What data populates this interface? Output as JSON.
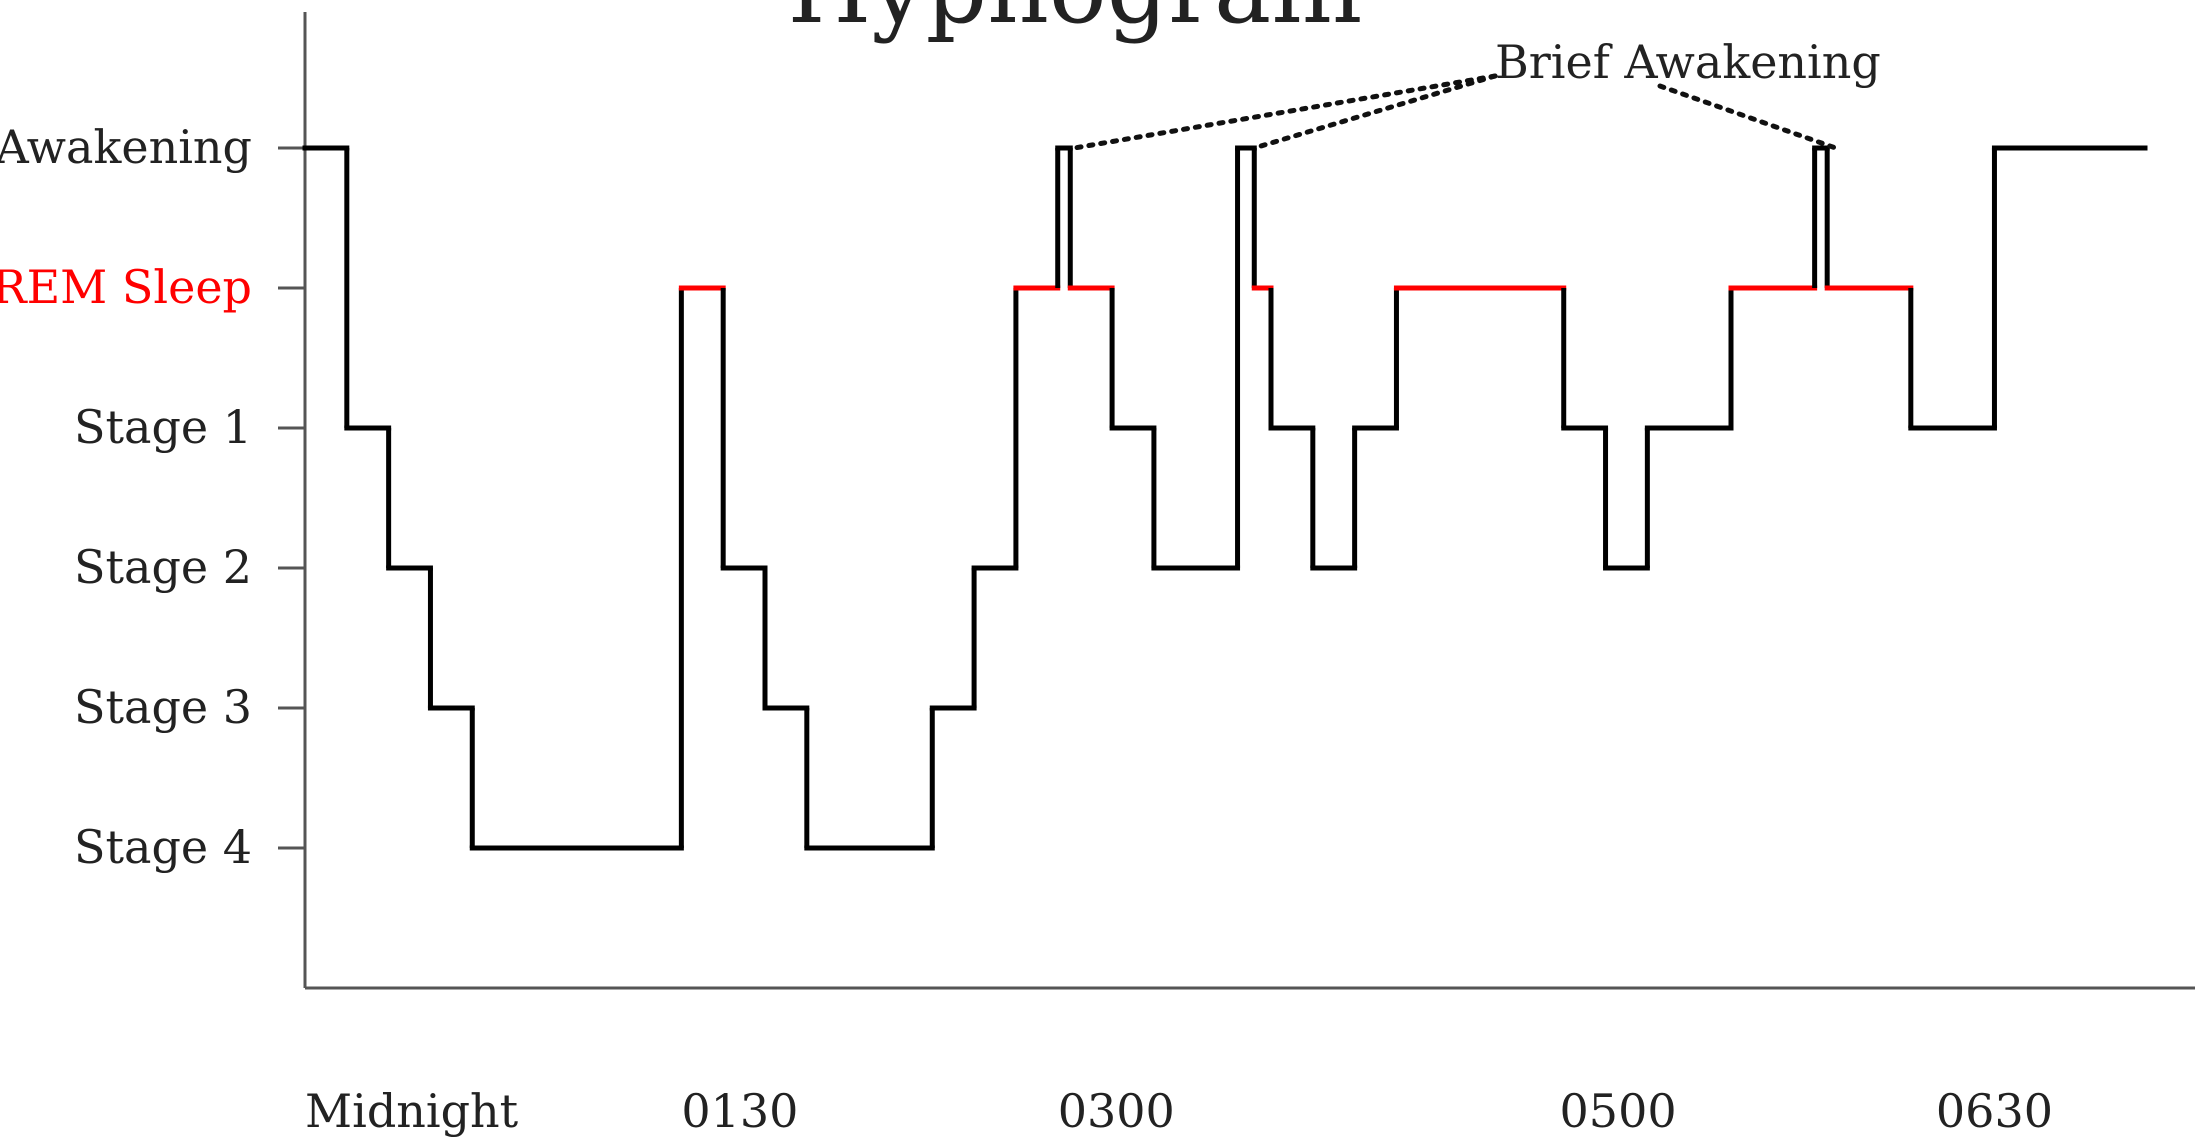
{
  "chart_data": {
    "type": "line",
    "title": "Hypnogram",
    "xlabel": "",
    "ylabel": "",
    "x_tick_labels": [
      "Midnight",
      "0130",
      "0300",
      "0500",
      "0630"
    ],
    "x_ticks_minutes_after_midnight": [
      0,
      90,
      180,
      300,
      390
    ],
    "y_categories": [
      "Awakening",
      "REM Sleep",
      "Stage 1",
      "Stage 2",
      "Stage 3",
      "Stage 4"
    ],
    "y_category_colors": [
      "#222222",
      "#ff0000",
      "#222222",
      "#222222",
      "#222222",
      "#222222"
    ],
    "x_unit": "minutes after midnight",
    "xlim": [
      0,
      440
    ],
    "ylim_levels": [
      -1,
      6
    ],
    "grid": false,
    "line_color": "#000000",
    "rem_color": "#ff0000",
    "annotation": {
      "text": "Brief Awakening",
      "targets_minutes": [
        184,
        227,
        366
      ]
    },
    "series": [
      {
        "segments": [
          {
            "start": 0,
            "end": 10,
            "stage": "Awakening"
          },
          {
            "start": 10,
            "end": 20,
            "stage": "Stage 1"
          },
          {
            "start": 20,
            "end": 30,
            "stage": "Stage 2"
          },
          {
            "start": 30,
            "end": 40,
            "stage": "Stage 3"
          },
          {
            "start": 40,
            "end": 90,
            "stage": "Stage 4"
          },
          {
            "start": 90,
            "end": 100,
            "stage": "REM Sleep"
          },
          {
            "start": 100,
            "end": 110,
            "stage": "Stage 2"
          },
          {
            "start": 110,
            "end": 120,
            "stage": "Stage 3"
          },
          {
            "start": 120,
            "end": 150,
            "stage": "Stage 4"
          },
          {
            "start": 150,
            "end": 160,
            "stage": "Stage 3"
          },
          {
            "start": 160,
            "end": 170,
            "stage": "Stage 2"
          },
          {
            "start": 170,
            "end": 180,
            "stage": "REM Sleep"
          },
          {
            "start": 180,
            "end": 183,
            "stage": "Awakening"
          },
          {
            "start": 183,
            "end": 193,
            "stage": "REM Sleep"
          },
          {
            "start": 193,
            "end": 203,
            "stage": "Stage 1"
          },
          {
            "start": 203,
            "end": 223,
            "stage": "Stage 2"
          },
          {
            "start": 223,
            "end": 227,
            "stage": "Awakening"
          },
          {
            "start": 227,
            "end": 231,
            "stage": "REM Sleep"
          },
          {
            "start": 231,
            "end": 241,
            "stage": "Stage 1"
          },
          {
            "start": 241,
            "end": 251,
            "stage": "Stage 2"
          },
          {
            "start": 251,
            "end": 261,
            "stage": "Stage 1"
          },
          {
            "start": 261,
            "end": 301,
            "stage": "REM Sleep"
          },
          {
            "start": 301,
            "end": 311,
            "stage": "Stage 1"
          },
          {
            "start": 311,
            "end": 321,
            "stage": "Stage 2"
          },
          {
            "start": 321,
            "end": 341,
            "stage": "Stage 1"
          },
          {
            "start": 341,
            "end": 361,
            "stage": "REM Sleep"
          },
          {
            "start": 361,
            "end": 364,
            "stage": "Awakening"
          },
          {
            "start": 364,
            "end": 384,
            "stage": "REM Sleep"
          },
          {
            "start": 384,
            "end": 404,
            "stage": "Stage 1"
          },
          {
            "start": 404,
            "end": 440,
            "stage": "Awakening"
          }
        ]
      }
    ]
  }
}
